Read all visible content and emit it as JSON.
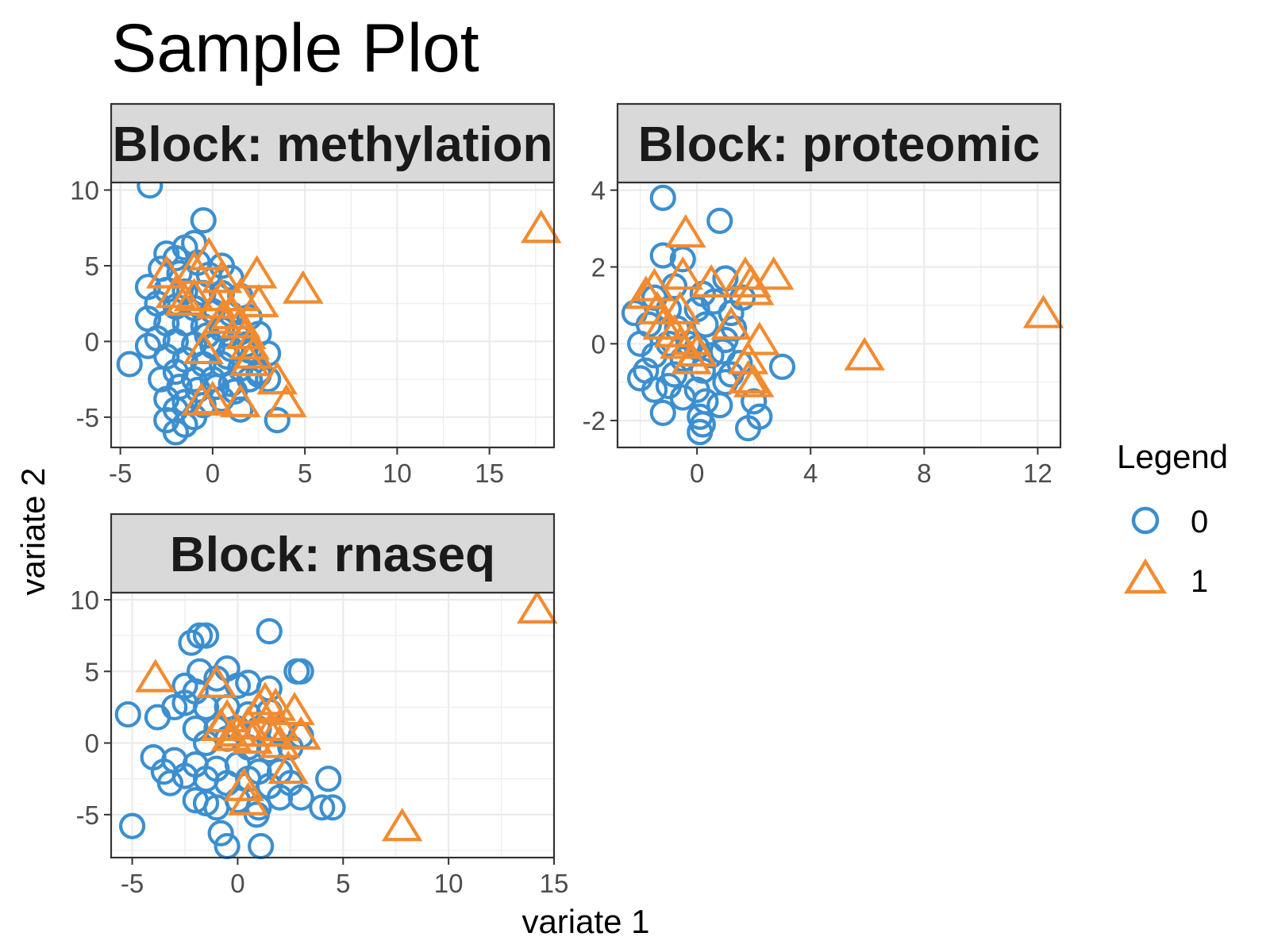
{
  "page_title": "Sample Plot",
  "x_axis_label": "variate 1",
  "y_axis_label": "variate 2",
  "legend": {
    "title": "Legend",
    "items": [
      {
        "label": "0",
        "shape": "circle",
        "color": "#3b8fd0"
      },
      {
        "label": "1",
        "shape": "triangle",
        "color": "#f28b30"
      }
    ]
  },
  "colors": {
    "group0": "#3b8fd0",
    "group1": "#f28b30",
    "strip_bg": "#d9d9d9",
    "grid": "#ebebeb"
  },
  "chart_data": [
    {
      "type": "scatter",
      "strip_label": "Block: methylation",
      "xlim": [
        -5.5,
        18.5
      ],
      "ylim": [
        -7,
        10.5
      ],
      "x_ticks": [
        -5,
        0,
        5,
        10,
        15
      ],
      "y_ticks": [
        -5,
        0,
        5,
        10
      ],
      "series": [
        {
          "name": "0",
          "points": [
            [
              -3.4,
              10.3
            ],
            [
              -0.5,
              8
            ],
            [
              -2.5,
              5.8
            ],
            [
              -1.5,
              6.2
            ],
            [
              -1,
              6.5
            ],
            [
              -2,
              5.5
            ],
            [
              -0.8,
              5.2
            ],
            [
              0.5,
              5
            ],
            [
              -2.8,
              4.8
            ],
            [
              -1.8,
              4.5
            ],
            [
              -0.2,
              4.4
            ],
            [
              1,
              4.2
            ],
            [
              -3.5,
              3.6
            ],
            [
              -2.5,
              3.4
            ],
            [
              -1.5,
              3.3
            ],
            [
              -0.5,
              3.2
            ],
            [
              0.5,
              3.2
            ],
            [
              1.5,
              3
            ],
            [
              -3,
              2.5
            ],
            [
              -2,
              2.3
            ],
            [
              -1,
              2.2
            ],
            [
              0,
              2
            ],
            [
              1,
              1.8
            ],
            [
              2,
              1.6
            ],
            [
              -3.5,
              1.5
            ],
            [
              -2.5,
              1.2
            ],
            [
              -1.5,
              1.2
            ],
            [
              -0.5,
              1
            ],
            [
              0.5,
              0.8
            ],
            [
              1.5,
              0.6
            ],
            [
              2.5,
              0.5
            ],
            [
              -3,
              0.2
            ],
            [
              -2,
              0
            ],
            [
              -1,
              -0.2
            ],
            [
              0,
              -0.3
            ],
            [
              1,
              -0.5
            ],
            [
              2,
              -0.6
            ],
            [
              3,
              -0.8
            ],
            [
              -3.5,
              -0.3
            ],
            [
              -2.5,
              -1
            ],
            [
              -1.5,
              -1.2
            ],
            [
              -0.5,
              -1.5
            ],
            [
              0.5,
              -1.5
            ],
            [
              1.5,
              -1.8
            ],
            [
              2.5,
              -2
            ],
            [
              -4.5,
              -1.5
            ],
            [
              -2,
              -2
            ],
            [
              -1,
              -2.5
            ],
            [
              0,
              -2.5
            ],
            [
              1,
              -2.8
            ],
            [
              2,
              -2.5
            ],
            [
              3,
              -2.5
            ],
            [
              -2.8,
              -2.5
            ],
            [
              -1.8,
              -3
            ],
            [
              -0.8,
              -3.2
            ],
            [
              0.2,
              -3
            ],
            [
              1.2,
              -3.3
            ],
            [
              -2.5,
              -3.8
            ],
            [
              -1.5,
              -4
            ],
            [
              -0.5,
              -4.2
            ],
            [
              0.5,
              -3.8
            ],
            [
              1.5,
              -4.5
            ],
            [
              -2,
              -4.5
            ],
            [
              -1,
              -5
            ],
            [
              -2.5,
              -5.2
            ],
            [
              -1.5,
              -5.5
            ],
            [
              3.5,
              -5.2
            ],
            [
              -2,
              -6
            ],
            [
              2.5,
              -2.2
            ],
            [
              0.8,
              -1
            ],
            [
              -0.3,
              0.4
            ],
            [
              1.8,
              -0.2
            ]
          ]
        },
        {
          "name": "1",
          "points": [
            [
              17.8,
              7.5
            ],
            [
              -0.2,
              5.7
            ],
            [
              2.4,
              4.5
            ],
            [
              -2.5,
              4.5
            ],
            [
              -1,
              4.8
            ],
            [
              0.5,
              4.2
            ],
            [
              4.9,
              3.5
            ],
            [
              -2,
              3.2
            ],
            [
              -1,
              3
            ],
            [
              0.5,
              3
            ],
            [
              1.5,
              3
            ],
            [
              -1.5,
              2.7
            ],
            [
              2.5,
              2.6
            ],
            [
              0.2,
              2.5
            ],
            [
              1,
              1.8
            ],
            [
              0.5,
              1.5
            ],
            [
              1.5,
              1.2
            ],
            [
              1.8,
              0.5
            ],
            [
              2,
              -0.2
            ],
            [
              2.2,
              -0.8
            ],
            [
              -0.5,
              -0.5
            ],
            [
              2,
              -1.3
            ],
            [
              3.5,
              -2.5
            ],
            [
              0,
              -3.8
            ],
            [
              -0.6,
              -3.9
            ],
            [
              1.5,
              -4
            ],
            [
              4,
              -4
            ]
          ]
        }
      ]
    },
    {
      "type": "scatter",
      "strip_label": "Block: proteomic",
      "xlim": [
        -2.8,
        12.8
      ],
      "ylim": [
        -2.7,
        4.2
      ],
      "x_ticks": [
        0,
        4,
        8,
        12
      ],
      "y_ticks": [
        -2,
        0,
        2,
        4
      ],
      "series": [
        {
          "name": "0",
          "points": [
            [
              -1.2,
              3.8
            ],
            [
              0.8,
              3.2
            ],
            [
              -1.2,
              2.3
            ],
            [
              -0.5,
              2.2
            ],
            [
              1,
              1.7
            ],
            [
              -0.8,
              1.5
            ],
            [
              0.2,
              1.3
            ],
            [
              -1.5,
              1.2
            ],
            [
              0.6,
              1.1
            ],
            [
              1.6,
              1.2
            ],
            [
              -2.2,
              0.8
            ],
            [
              -1,
              0.9
            ],
            [
              0,
              0.9
            ],
            [
              1.2,
              0.8
            ],
            [
              -1.7,
              0.5
            ],
            [
              -0.7,
              0.4
            ],
            [
              0.3,
              0.5
            ],
            [
              1.3,
              0.4
            ],
            [
              -2,
              0
            ],
            [
              -1,
              0
            ],
            [
              0,
              -0.1
            ],
            [
              1,
              0.1
            ],
            [
              -1.5,
              -0.3
            ],
            [
              -0.5,
              -0.4
            ],
            [
              0.5,
              -0.3
            ],
            [
              1.5,
              -0.5
            ],
            [
              -1.8,
              -0.7
            ],
            [
              -0.8,
              -0.8
            ],
            [
              0.2,
              -0.7
            ],
            [
              1.2,
              -0.8
            ],
            [
              -2,
              -0.9
            ],
            [
              -1,
              -1.1
            ],
            [
              0,
              -1.2
            ],
            [
              1,
              -1
            ],
            [
              -1.5,
              -1.2
            ],
            [
              -0.5,
              -1.4
            ],
            [
              0.3,
              -1.5
            ],
            [
              0.8,
              -1.6
            ],
            [
              -1.2,
              -1.8
            ],
            [
              0.1,
              -1.9
            ],
            [
              0.2,
              -2.1
            ],
            [
              0.1,
              -2.3
            ],
            [
              1.8,
              -2.2
            ],
            [
              2.2,
              -1.9
            ],
            [
              3,
              -0.6
            ],
            [
              2,
              -1.5
            ],
            [
              -0.3,
              0
            ],
            [
              0.9,
              -0.2
            ]
          ]
        },
        {
          "name": "1",
          "points": [
            [
              12.2,
              0.8
            ],
            [
              -0.4,
              2.9
            ],
            [
              2.7,
              1.8
            ],
            [
              1.7,
              1.8
            ],
            [
              -1.5,
              1.5
            ],
            [
              1.9,
              1.6
            ],
            [
              -0.5,
              1.8
            ],
            [
              0.5,
              1.6
            ],
            [
              -1.8,
              1.3
            ],
            [
              2,
              1.4
            ],
            [
              -1.4,
              0.9
            ],
            [
              -0.6,
              0.9
            ],
            [
              1.2,
              0.5
            ],
            [
              -1.2,
              0.5
            ],
            [
              -0.8,
              0.3
            ],
            [
              -0.2,
              0.1
            ],
            [
              2.2,
              0.1
            ],
            [
              -0.6,
              0
            ],
            [
              0,
              -0.2
            ],
            [
              -0.2,
              -0.4
            ],
            [
              5.9,
              -0.3
            ],
            [
              1.8,
              -0.4
            ],
            [
              1.8,
              -0.9
            ],
            [
              2,
              -1
            ]
          ]
        }
      ]
    },
    {
      "type": "scatter",
      "strip_label": "Block: rnaseq",
      "xlim": [
        -6,
        15
      ],
      "ylim": [
        -8,
        10.5
      ],
      "x_ticks": [
        -5,
        0,
        5,
        10,
        15
      ],
      "y_ticks": [
        -5,
        0,
        5,
        10
      ],
      "series": [
        {
          "name": "0",
          "points": [
            [
              -1.5,
              7.5
            ],
            [
              -2.2,
              7
            ],
            [
              1.5,
              7.8
            ],
            [
              -1.8,
              7.5
            ],
            [
              -0.5,
              5.2
            ],
            [
              -1.8,
              5
            ],
            [
              2.8,
              5
            ],
            [
              3,
              5
            ],
            [
              -1,
              4.5
            ],
            [
              0,
              4
            ],
            [
              -2.5,
              4
            ],
            [
              -2,
              3.6
            ],
            [
              0.5,
              4.2
            ],
            [
              1.5,
              3.8
            ],
            [
              -3,
              2.5
            ],
            [
              -2.5,
              2.8
            ],
            [
              -1.5,
              2.5
            ],
            [
              -0.5,
              2.5
            ],
            [
              0.5,
              2
            ],
            [
              1.5,
              2.2
            ],
            [
              -5.2,
              2
            ],
            [
              -3.8,
              1.8
            ],
            [
              -2,
              1
            ],
            [
              -1,
              1
            ],
            [
              0,
              1
            ],
            [
              1,
              1
            ],
            [
              2,
              0.8
            ],
            [
              3,
              0.5
            ],
            [
              -1.5,
              0
            ],
            [
              -0.5,
              0.3
            ],
            [
              0.5,
              -0.3
            ],
            [
              1.5,
              -0.5
            ],
            [
              2.5,
              -0.3
            ],
            [
              -4,
              -1
            ],
            [
              -3,
              -1.2
            ],
            [
              -2,
              -1.5
            ],
            [
              -1,
              -1.8
            ],
            [
              0,
              -1.5
            ],
            [
              1,
              -2
            ],
            [
              2,
              -2
            ],
            [
              -3.5,
              -2
            ],
            [
              -2.5,
              -2.3
            ],
            [
              -1.5,
              -2.5
            ],
            [
              -0.5,
              -2.8
            ],
            [
              0.5,
              -2.5
            ],
            [
              1.5,
              -3
            ],
            [
              2.5,
              -2.8
            ],
            [
              -3.2,
              -2.8
            ],
            [
              -2,
              -4
            ],
            [
              -1.5,
              -4.2
            ],
            [
              -1,
              -4.5
            ],
            [
              0,
              -4
            ],
            [
              1,
              -4.5
            ],
            [
              2,
              -3.8
            ],
            [
              3,
              -3.8
            ],
            [
              4,
              -4.5
            ],
            [
              4.5,
              -4.5
            ],
            [
              4.3,
              -2.5
            ],
            [
              -5,
              -5.8
            ],
            [
              -0.8,
              -6.3
            ],
            [
              -0.5,
              -7.2
            ],
            [
              1.1,
              -7.2
            ],
            [
              0.9,
              -5
            ]
          ]
        },
        {
          "name": "1",
          "points": [
            [
              14.2,
              9.4
            ],
            [
              -3.9,
              4.6
            ],
            [
              -1,
              4.2
            ],
            [
              1.3,
              3
            ],
            [
              1.8,
              2.6
            ],
            [
              1,
              2.4
            ],
            [
              2.7,
              2.3
            ],
            [
              -0.5,
              1.8
            ],
            [
              0.5,
              1.3
            ],
            [
              2,
              1.2
            ],
            [
              -0.8,
              1.2
            ],
            [
              0,
              0.8
            ],
            [
              1.5,
              0.8
            ],
            [
              3,
              0.6
            ],
            [
              -0.3,
              0.5
            ],
            [
              0.7,
              0.3
            ],
            [
              2,
              0
            ],
            [
              2.4,
              -1.8
            ],
            [
              0.3,
              -3
            ],
            [
              0.5,
              -4
            ],
            [
              7.8,
              -5.8
            ]
          ]
        }
      ]
    }
  ]
}
